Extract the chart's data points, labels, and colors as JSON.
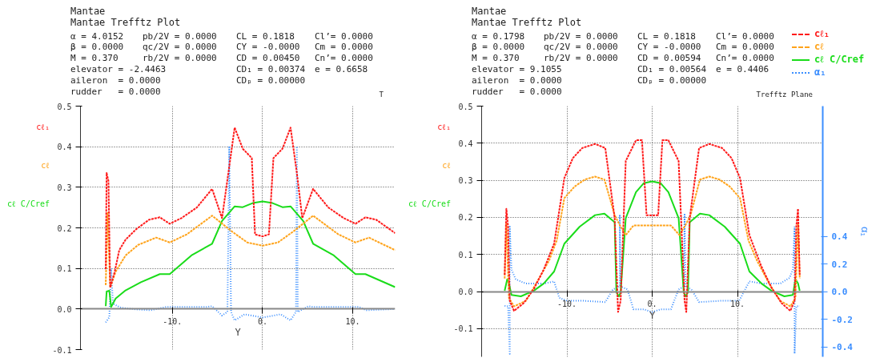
{
  "chart_data": [
    {
      "type": "line",
      "title": "Mantae",
      "subtitle": "Mantae Trefftz Plot",
      "xlabel": "Y",
      "annotations": [
        "α = 4.0152",
        "pb/2V = 0.0000",
        "CL = 0.1818",
        "Cl’= 0.0000",
        "β = 0.0000",
        "qc/2V = 0.0000",
        "CY = -0.0000",
        "Cm = 0.0000",
        "M = 0.370",
        "rb/2V = 0.0000",
        "CD = 0.00450",
        "Cn’= 0.0000",
        "elevator = -2.4463",
        "CD₁ = 0.00374",
        "e = 0.6658",
        "aileron  = 0.0000",
        "CDₚ = 0.00000",
        "rudder   = 0.0000",
        "T"
      ],
      "xlim": [
        -20.2,
        14.7
      ],
      "xticks": [
        {
          "value": -10,
          "label": "-10."
        },
        {
          "value": 0,
          "label": "0."
        },
        {
          "value": 10,
          "label": "10."
        }
      ],
      "ylim": [
        -0.1,
        0.5
      ],
      "yticks": [
        -0.1,
        {
          "value": 0,
          "label": "0.0"
        },
        0.1,
        0.2,
        0.3,
        0.4,
        0.5
      ],
      "grid": true,
      "legend": false,
      "series": [
        {
          "name": "cℓ₁",
          "color": "#ff1a1a",
          "line_style": "dashed",
          "x": [
            -17.4,
            -17.3,
            -17.1,
            -16.9,
            -16.4,
            -15.9,
            -15.2,
            -14.0,
            -12.6,
            -11.4,
            -10.3,
            -9.0,
            -7.3,
            -5.6,
            -4.5,
            -3.8,
            -3.1,
            -2.2,
            -1.2,
            -0.84,
            0,
            0.7,
            1.2,
            2.2,
            3.1,
            3.8,
            4.4,
            5.6,
            7.3,
            9.0,
            10.3,
            11.4,
            12.6,
            14.7
          ],
          "values": [
            0.098,
            0.335,
            0.316,
            0.053,
            0.092,
            0.145,
            0.171,
            0.197,
            0.22,
            0.226,
            0.21,
            0.224,
            0.25,
            0.296,
            0.224,
            0.335,
            0.447,
            0.395,
            0.372,
            0.184,
            0.179,
            0.184,
            0.372,
            0.395,
            0.447,
            0.335,
            0.224,
            0.296,
            0.25,
            0.224,
            0.21,
            0.226,
            0.22,
            0.187
          ]
        },
        {
          "name": "cℓ",
          "color": "#ffa31a",
          "line_style": "dashed",
          "x": [
            -17.4,
            -17.2,
            -16.9,
            -16.3,
            -15.2,
            -13.8,
            -11.8,
            -10.3,
            -8.4,
            -5.6,
            -3.4,
            -1.7,
            0,
            1.7,
            3.4,
            5.6,
            8.4,
            10.3,
            11.8,
            14.7
          ],
          "values": [
            0.059,
            0.237,
            0.053,
            0.092,
            0.132,
            0.158,
            0.176,
            0.164,
            0.184,
            0.23,
            0.191,
            0.164,
            0.156,
            0.164,
            0.191,
            0.23,
            0.184,
            0.164,
            0.176,
            0.145
          ]
        },
        {
          "name": "cℓ C/Cref",
          "color": "#1adc1a",
          "line_style": "solid",
          "x": [
            -17.4,
            -17.3,
            -17.0,
            -16.8,
            -16.3,
            -15.2,
            -13.5,
            -11.4,
            -10.3,
            -7.9,
            -5.6,
            -4.5,
            -3.1,
            -2.2,
            -1.1,
            0,
            1.1,
            2.2,
            3.1,
            4.5,
            5.6,
            7.9,
            10.3,
            11.4,
            14.7
          ],
          "values": [
            0.007,
            0.043,
            0.045,
            0.005,
            0.026,
            0.046,
            0.066,
            0.086,
            0.086,
            0.132,
            0.161,
            0.217,
            0.253,
            0.251,
            0.261,
            0.265,
            0.261,
            0.251,
            0.253,
            0.217,
            0.161,
            0.132,
            0.086,
            0.086,
            0.054
          ]
        },
        {
          "color": "#3b8eff",
          "line_style": "dotted",
          "x": [
            -17.4,
            -17.0,
            -16.8,
            -16.6,
            -15.7,
            -14.0,
            -12.4,
            -10.7,
            -6.2,
            -5.6,
            -4.5,
            -3.9,
            -3.7,
            -3.5,
            -3.1,
            -2.0,
            0,
            2.0,
            3.1,
            3.7,
            3.8,
            3.9,
            5.1,
            5.6,
            10.7,
            11.5,
            14.7
          ],
          "values": [
            -0.033,
            -0.02,
            0.1,
            0.013,
            0.003,
            -0.001,
            -0.003,
            0.005,
            0.005,
            0.007,
            -0.016,
            -0.007,
            0.401,
            -0.007,
            -0.028,
            -0.013,
            -0.021,
            -0.013,
            -0.028,
            -0.007,
            0.401,
            -0.007,
            0.007,
            0.005,
            0.005,
            -0.003,
            0
          ]
        }
      ]
    },
    {
      "type": "line",
      "title": "Mantae",
      "subtitle": "Mantae Trefftz Plot",
      "xlabel": "Y",
      "y2label": "α₁",
      "annotations": [
        "α = 0.1798",
        "pb/2V = 0.0000",
        "CL = 0.1818",
        "Cl’= 0.0000",
        "β = 0.0000",
        "qc/2V = 0.0000",
        "CY = -0.0000",
        "Cm = 0.0000",
        "M = 0.370",
        "rb/2V = 0.0000",
        "CD = 0.00594",
        "Cn’= 0.0000",
        "elevator = 9.1055",
        "CD₁ = 0.00564",
        "e = 0.4406",
        "aileron  = 0.0000",
        "CDₚ = 0.00000",
        "rudder   = 0.0000",
        "Trefftz Plane"
      ],
      "xlim": [
        -20,
        20
      ],
      "xticks": [
        {
          "value": -10,
          "label": "-10."
        },
        {
          "value": 0,
          "label": "0."
        },
        {
          "value": 10,
          "label": "10."
        }
      ],
      "ylim": [
        -0.176,
        0.5
      ],
      "yticks": [
        -0.1,
        {
          "value": 0,
          "label": "0.0"
        },
        0.1,
        0.2,
        0.3,
        0.4,
        0.5
      ],
      "y2lim": [
        -0.472,
        1.343
      ],
      "y2ticks": [
        -0.4,
        -0.2,
        {
          "value": 0,
          "label": "0.0"
        },
        0.2,
        0.4
      ],
      "grid": true,
      "legend": "top right",
      "series": [
        {
          "name": "cℓ₁",
          "color": "#ff1a1a",
          "line_style": "dashed",
          "x": [
            -17.3,
            -17.1,
            -16.9,
            -16.7,
            -16.2,
            -15.1,
            -13.9,
            -12.7,
            -11.5,
            -10.3,
            -9.3,
            -8.2,
            -6.7,
            -5.5,
            -4.4,
            -4.0,
            -3.7,
            -3.1,
            -1.9,
            -1.2,
            -0.66,
            0,
            0.7,
            1.2,
            1.9,
            3.1,
            3.8,
            4.0,
            4.4,
            5.5,
            6.7,
            8.2,
            9.3,
            10.3,
            11.4,
            12.8,
            14.0,
            15.2,
            16.2,
            16.7,
            16.9,
            17.1,
            17.3
          ],
          "values": [
            0.045,
            0.223,
            0.175,
            -0.025,
            -0.052,
            -0.032,
            0.006,
            0.06,
            0.129,
            0.306,
            0.36,
            0.387,
            0.398,
            0.387,
            0.198,
            -0.055,
            -0.025,
            0.352,
            0.408,
            0.408,
            0.206,
            0.205,
            0.206,
            0.408,
            0.408,
            0.352,
            -0.025,
            -0.055,
            0.198,
            0.387,
            0.398,
            0.387,
            0.36,
            0.306,
            0.152,
            0.068,
            0.01,
            -0.032,
            -0.052,
            -0.025,
            0.175,
            0.223,
            0.045
          ]
        },
        {
          "name": "cℓ",
          "color": "#ffa31a",
          "line_style": "dashed",
          "x": [
            -17.3,
            -17.1,
            -16.8,
            -16.2,
            -14.8,
            -13.6,
            -12.1,
            -11.2,
            -10.3,
            -9.1,
            -7.9,
            -6.7,
            -5.6,
            -4.4,
            -3.8,
            -3.1,
            -2.2,
            0,
            2.2,
            3.2,
            3.9,
            4.5,
            5.6,
            6.7,
            7.9,
            9.1,
            10.3,
            11.3,
            12.3,
            13.7,
            15.0,
            16.2,
            16.8,
            17.1,
            17.3
          ],
          "values": [
            0.035,
            0.183,
            -0.017,
            -0.04,
            -0.025,
            0.022,
            0.083,
            0.137,
            0.252,
            0.283,
            0.302,
            0.31,
            0.302,
            0.206,
            0.179,
            0.152,
            0.178,
            0.178,
            0.178,
            0.152,
            0.179,
            0.206,
            0.302,
            0.31,
            0.302,
            0.283,
            0.252,
            0.137,
            0.083,
            0.022,
            -0.025,
            -0.04,
            -0.017,
            0.183,
            0.035
          ]
        },
        {
          "name": "cℓ C/Cref",
          "color": "#1adc1a",
          "line_style": "solid",
          "x": [
            -17.3,
            -17.0,
            -16.8,
            -16.5,
            -15.4,
            -13.9,
            -12.7,
            -11.5,
            -10.3,
            -8.5,
            -6.7,
            -5.6,
            -4.4,
            -4.2,
            -3.9,
            -3.7,
            -3.1,
            -1.9,
            -1.0,
            0,
            1.0,
            1.9,
            3.1,
            3.7,
            3.9,
            4.2,
            4.4,
            5.6,
            6.7,
            8.5,
            10.3,
            11.4,
            12.8,
            14.0,
            15.5,
            16.5,
            16.8,
            17.1,
            17.3
          ],
          "values": [
            0.002,
            0.033,
            0.022,
            -0.009,
            -0.013,
            0.002,
            0.022,
            0.054,
            0.129,
            0.175,
            0.206,
            0.21,
            0.187,
            -0.002,
            -0.013,
            -0.002,
            0.198,
            0.268,
            0.292,
            0.297,
            0.292,
            0.268,
            0.198,
            -0.002,
            -0.013,
            -0.002,
            0.187,
            0.21,
            0.206,
            0.175,
            0.129,
            0.054,
            0.022,
            0.002,
            -0.013,
            -0.009,
            0.033,
            0.022,
            0.002
          ]
        },
        {
          "name": "α₁",
          "color": "#3b8eff",
          "line_style": "dotted",
          "axis": "y2",
          "x": [
            -17.3,
            -16.9,
            -16.7,
            -16.7,
            -16.5,
            -16.0,
            -14.8,
            -12.7,
            -11.5,
            -10.9,
            -10.0,
            -8.2,
            -5.5,
            -4.6,
            -3.8,
            -3.8,
            -3.7,
            -2.9,
            -2.2,
            -1.0,
            0,
            1.0,
            2.2,
            3.1,
            3.7,
            3.8,
            3.9,
            4.6,
            5.5,
            8.2,
            10.2,
            11.4,
            12.9,
            15.0,
            16.1,
            16.5,
            16.7,
            16.7,
            16.9,
            17.3
          ],
          "values": [
            -0.103,
            -0.107,
            -0.45,
            0.47,
            0.161,
            0.089,
            0.058,
            0.058,
            0.074,
            -0.045,
            -0.066,
            -0.066,
            -0.076,
            0.016,
            0.037,
            0.557,
            0.037,
            0.016,
            -0.128,
            -0.128,
            -0.148,
            -0.128,
            -0.128,
            0.016,
            0.037,
            0.557,
            0.037,
            0.016,
            -0.076,
            -0.066,
            -0.066,
            0.074,
            0.058,
            0.058,
            0.099,
            0.161,
            0.47,
            -0.45,
            -0.107,
            -0.103
          ]
        }
      ]
    }
  ]
}
